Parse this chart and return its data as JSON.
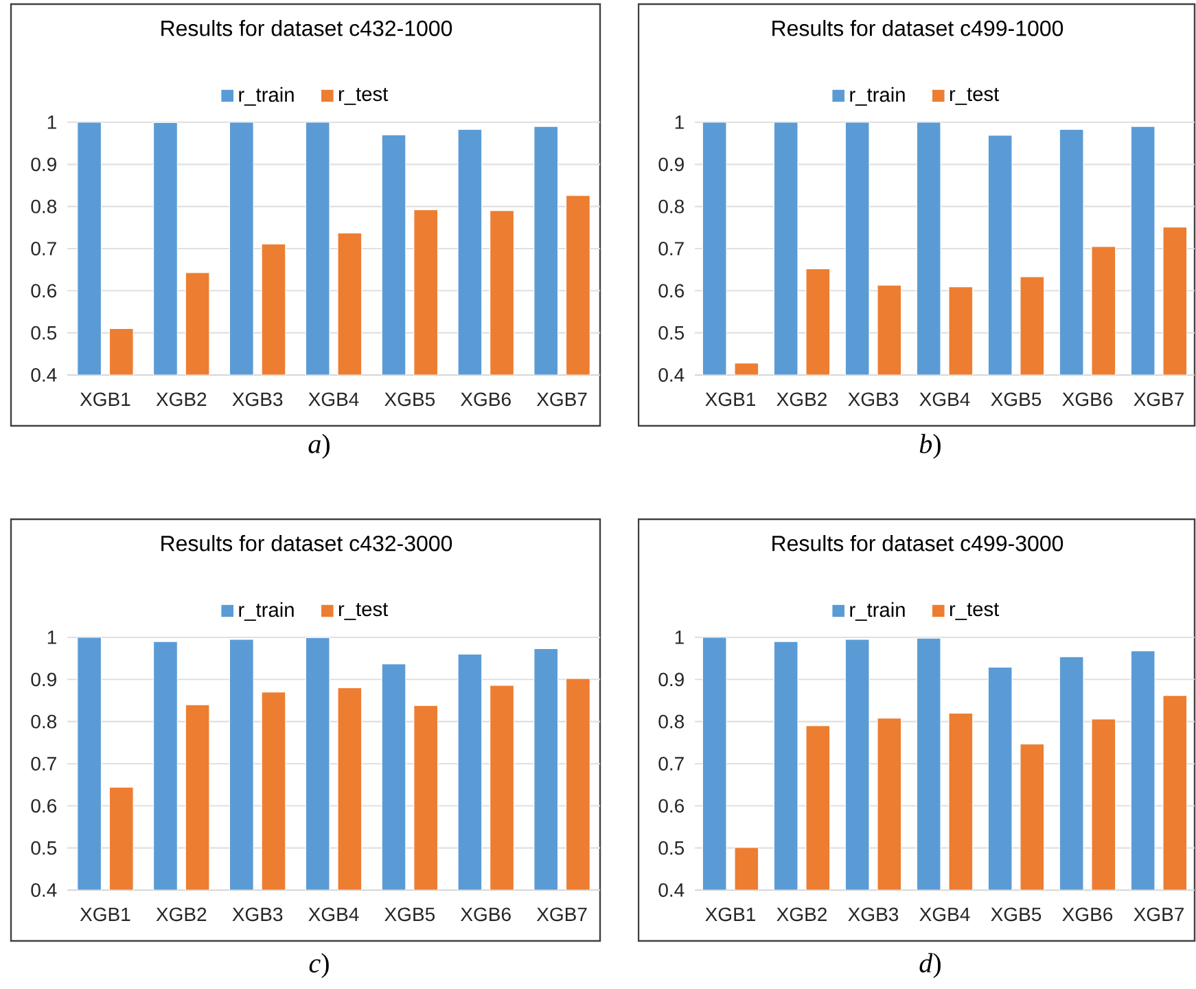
{
  "chart_data": [
    {
      "type": "bar",
      "title": "Results for dataset c432-1000",
      "categories": [
        "XGB1",
        "XGB2",
        "XGB3",
        "XGB4",
        "XGB5",
        "XGB6",
        "XGB7"
      ],
      "series": [
        {
          "name": "r_train",
          "color": "#5b9bd5",
          "values": [
            1,
            0.999,
            1,
            1,
            0.97,
            0.983,
            0.99
          ]
        },
        {
          "name": "r_test",
          "color": "#ed7d31",
          "values": [
            0.51,
            0.643,
            0.711,
            0.737,
            0.792,
            0.79,
            0.826
          ]
        }
      ],
      "ylim": [
        0.4,
        1
      ],
      "yticks": [
        0.4,
        0.5,
        0.6,
        0.7,
        0.8,
        0.9,
        1
      ],
      "grid": "y",
      "legend": "top",
      "annotations": [
        "*a*)"
      ]
    },
    {
      "type": "bar",
      "title": "Results for dataset c499-1000",
      "categories": [
        "XGB1",
        "XGB2",
        "XGB3",
        "XGB4",
        "XGB5",
        "XGB6",
        "XGB7"
      ],
      "series": [
        {
          "name": "r_train",
          "color": "#5b9bd5",
          "values": [
            1,
            1,
            1,
            1,
            0.969,
            0.983,
            0.99
          ]
        },
        {
          "name": "r_test",
          "color": "#ed7d31",
          "values": [
            0.428,
            0.652,
            0.613,
            0.609,
            0.633,
            0.705,
            0.751
          ]
        }
      ],
      "ylim": [
        0.4,
        1
      ],
      "yticks": [
        0.4,
        0.5,
        0.6,
        0.7,
        0.8,
        0.9,
        1
      ],
      "grid": "y",
      "legend": "top",
      "annotations": [
        "*b*)"
      ]
    },
    {
      "type": "bar",
      "title": "Results for dataset c432-3000",
      "categories": [
        "XGB1",
        "XGB2",
        "XGB3",
        "XGB4",
        "XGB5",
        "XGB6",
        "XGB7"
      ],
      "series": [
        {
          "name": "r_train",
          "color": "#5b9bd5",
          "values": [
            1,
            0.99,
            0.995,
            0.999,
            0.937,
            0.96,
            0.973
          ]
        },
        {
          "name": "r_test",
          "color": "#ed7d31",
          "values": [
            0.644,
            0.84,
            0.87,
            0.88,
            0.838,
            0.886,
            0.902
          ]
        }
      ],
      "ylim": [
        0.4,
        1
      ],
      "yticks": [
        0.4,
        0.5,
        0.6,
        0.7,
        0.8,
        0.9,
        1
      ],
      "grid": "y",
      "legend": "top",
      "annotations": [
        "*c*)"
      ]
    },
    {
      "type": "bar",
      "title": "Results for dataset c499-3000",
      "categories": [
        "XGB1",
        "XGB2",
        "XGB3",
        "XGB4",
        "XGB5",
        "XGB6",
        "XGB7"
      ],
      "series": [
        {
          "name": "r_train",
          "color": "#5b9bd5",
          "values": [
            1,
            0.99,
            0.995,
            0.998,
            0.929,
            0.954,
            0.968
          ]
        },
        {
          "name": "r_test",
          "color": "#ed7d31",
          "values": [
            0.501,
            0.79,
            0.808,
            0.82,
            0.747,
            0.806,
            0.862
          ]
        }
      ],
      "ylim": [
        0.4,
        1
      ],
      "yticks": [
        0.4,
        0.5,
        0.6,
        0.7,
        0.8,
        0.9,
        1
      ],
      "grid": "y",
      "legend": "top",
      "annotations": [
        "*d*)"
      ]
    }
  ]
}
